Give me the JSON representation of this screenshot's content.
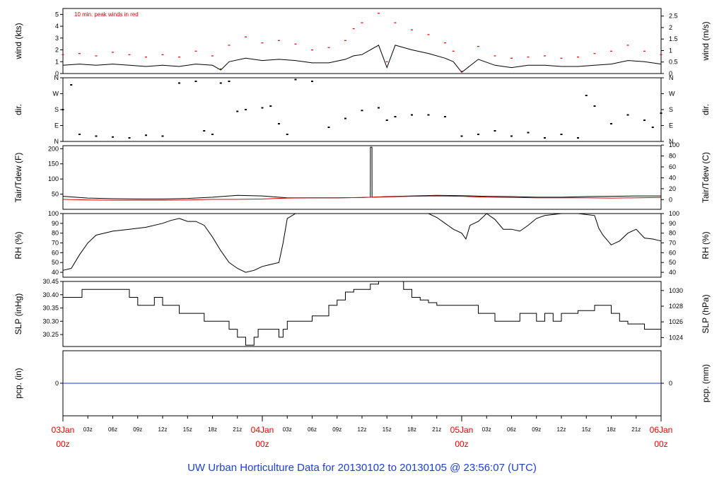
{
  "title": "UW Urban Horticulture Data for 20130102  to  20130105 @ 23:56:07  (UTC)",
  "chart_data": {
    "type": "line",
    "x_range_hours": [
      0,
      72
    ],
    "x_axis": {
      "major": [
        {
          "hour": 0,
          "date": "03Jan",
          "time": "00z"
        },
        {
          "hour": 24,
          "date": "04Jan",
          "time": "00z"
        },
        {
          "hour": 48,
          "date": "05Jan",
          "time": "00z"
        },
        {
          "hour": 72,
          "date": "06Jan",
          "time": "00z"
        }
      ],
      "minor": [
        {
          "hour": 3,
          "label": "03z"
        },
        {
          "hour": 6,
          "label": "06z"
        },
        {
          "hour": 9,
          "label": "09z"
        },
        {
          "hour": 12,
          "label": "12z"
        },
        {
          "hour": 15,
          "label": "15z"
        },
        {
          "hour": 18,
          "label": "18z"
        },
        {
          "hour": 21,
          "label": "21z"
        },
        {
          "hour": 27,
          "label": "03z"
        },
        {
          "hour": 30,
          "label": "06z"
        },
        {
          "hour": 33,
          "label": "09z"
        },
        {
          "hour": 36,
          "label": "12z"
        },
        {
          "hour": 39,
          "label": "15z"
        },
        {
          "hour": 42,
          "label": "18z"
        },
        {
          "hour": 45,
          "label": "21z"
        },
        {
          "hour": 51,
          "label": "03z"
        },
        {
          "hour": 54,
          "label": "06z"
        },
        {
          "hour": 57,
          "label": "09z"
        },
        {
          "hour": 60,
          "label": "12z"
        },
        {
          "hour": 63,
          "label": "15z"
        },
        {
          "hour": 66,
          "label": "18z"
        },
        {
          "hour": 69,
          "label": "21z"
        }
      ]
    },
    "panels": [
      {
        "id": "wind",
        "ylabel_left": "wind (kts)",
        "ylabel_right": "wind (m/s)",
        "ylim": [
          0,
          5.5
        ],
        "ticks_left": [
          "0",
          "1",
          "2",
          "3",
          "4",
          "5"
        ],
        "ticks_right": [
          "0",
          "0.5",
          "1",
          "1.5",
          "2",
          "2.5"
        ],
        "annotation": "10 min. peak winds in red",
        "series": [
          {
            "color": "#000000",
            "hours": [
              0,
              2,
              4,
              6,
              8,
              10,
              12,
              14,
              16,
              18,
              19,
              20,
              22,
              24,
              26,
              28,
              30,
              32,
              34,
              35,
              36,
              38,
              39,
              40,
              42,
              44,
              46,
              47,
              48,
              50,
              52,
              54,
              56,
              58,
              60,
              62,
              64,
              66,
              68,
              70,
              72
            ],
            "values": [
              0.7,
              0.8,
              0.7,
              0.8,
              0.7,
              0.6,
              0.7,
              0.6,
              0.8,
              0.7,
              0.3,
              1.0,
              1.3,
              1.1,
              1.2,
              1.1,
              0.9,
              0.9,
              1.2,
              1.5,
              1.6,
              2.4,
              0.5,
              2.4,
              2.0,
              1.7,
              1.3,
              1.0,
              0.1,
              1.2,
              0.7,
              0.5,
              0.7,
              0.7,
              0.6,
              0.6,
              0.7,
              0.8,
              1.1,
              1.0,
              0.8
            ]
          },
          {
            "color": "#dd0000",
            "hours": [
              0,
              2,
              4,
              6,
              8,
              10,
              12,
              14,
              16,
              18,
              19,
              20,
              22,
              24,
              26,
              28,
              30,
              32,
              34,
              35,
              36,
              38,
              39,
              40,
              42,
              44,
              46,
              47,
              48,
              50,
              52,
              54,
              56,
              58,
              60,
              62,
              64,
              66,
              68,
              70,
              72
            ],
            "values": [
              1.6,
              1.7,
              1.5,
              1.8,
              1.6,
              1.4,
              1.6,
              1.4,
              1.9,
              1.5,
              0.4,
              2.4,
              3.1,
              2.6,
              2.8,
              2.5,
              2.0,
              2.2,
              2.8,
              3.8,
              4.3,
              5.1,
              1.0,
              4.3,
              3.7,
              3.3,
              2.6,
              1.9,
              0.2,
              2.3,
              1.5,
              1.3,
              1.4,
              1.5,
              1.3,
              1.4,
              1.7,
              1.9,
              2.4,
              1.9,
              1.6
            ]
          }
        ]
      },
      {
        "id": "dir",
        "ylabel_left": "dir.",
        "ylabel_right": "dir.",
        "ylim": [
          0,
          360
        ],
        "ticks": [
          "N",
          "E",
          "S",
          "W",
          "N"
        ],
        "series": [
          {
            "color": "#000000",
            "hours": [
              0,
              1,
              2,
              4,
              6,
              8,
              10,
              12,
              14,
              16,
              17,
              18,
              19,
              20,
              21,
              22,
              24,
              25,
              26,
              27,
              28,
              30,
              32,
              34,
              36,
              38,
              39,
              40,
              42,
              44,
              46,
              48,
              50,
              52,
              54,
              56,
              58,
              60,
              62,
              63,
              64,
              66,
              68,
              70,
              71,
              72
            ],
            "values": [
              180,
              320,
              40,
              30,
              25,
              20,
              35,
              30,
              330,
              340,
              60,
              40,
              330,
              340,
              170,
              180,
              190,
              200,
              100,
              40,
              350,
              340,
              80,
              130,
              175,
              190,
              120,
              140,
              150,
              150,
              140,
              30,
              40,
              60,
              30,
              50,
              20,
              40,
              20,
              260,
              200,
              100,
              150,
              120,
              80,
              160
            ]
          }
        ]
      },
      {
        "id": "temp",
        "ylabel_left": "Tair/Tdew (F)",
        "ylabel_right": "Tair/Tdew (C)",
        "ylim": [
          0,
          210
        ],
        "ticks_left": [
          "50",
          "100",
          "150",
          "200"
        ],
        "ticks_right": [
          "0",
          "20",
          "40",
          "60",
          "80",
          "100"
        ],
        "series": [
          {
            "name": "Tair",
            "color": "#000000",
            "hours": [
              0,
              3,
              6,
              9,
              12,
              15,
              18,
              21,
              24,
              27,
              30,
              33,
              36,
              37,
              37.01,
              37.2,
              37.21,
              39,
              42,
              45,
              48,
              51,
              54,
              57,
              60,
              63,
              66,
              69,
              72
            ],
            "values": [
              43,
              37,
              35,
              34,
              34,
              36,
              40,
              46,
              44,
              38,
              38,
              38,
              39,
              40,
              205,
              205,
              40,
              42,
              44,
              46,
              45,
              43,
              42,
              40,
              40,
              42,
              43,
              44,
              44
            ]
          },
          {
            "name": "Tdew",
            "color": "#dd0000",
            "hours": [
              0,
              3,
              6,
              9,
              12,
              15,
              18,
              21,
              24,
              27,
              30,
              33,
              36,
              39,
              42,
              45,
              48,
              51,
              54,
              57,
              60,
              63,
              66,
              69,
              72
            ],
            "values": [
              33,
              31,
              30,
              30,
              30,
              31,
              33,
              33,
              34,
              37,
              38,
              38,
              39,
              41,
              43,
              44,
              43,
              40,
              39,
              38,
              38,
              38,
              37,
              38,
              39
            ]
          }
        ]
      },
      {
        "id": "rh",
        "ylabel_left": "RH (%)",
        "ylabel_right": "RH (%)",
        "ylim": [
          35,
          100
        ],
        "ticks_left": [
          "40",
          "50",
          "60",
          "70",
          "80",
          "90",
          "100"
        ],
        "ticks_right": [
          "40",
          "50",
          "60",
          "70",
          "80",
          "90",
          "100"
        ],
        "series": [
          {
            "color": "#000000",
            "hours": [
              0,
              1,
              2,
              3,
              4,
              6,
              8,
              10,
              12,
              13,
              14,
              15,
              16,
              17,
              18,
              19,
              20,
              21,
              22,
              23,
              24,
              25,
              26,
              26.5,
              27,
              28,
              29,
              30,
              31,
              32,
              34,
              36,
              38,
              40,
              42,
              44,
              45,
              46,
              47,
              48,
              48.5,
              49,
              50,
              51,
              52,
              53,
              54,
              55,
              56,
              57,
              58,
              60,
              62,
              64,
              64.5,
              65,
              66,
              67,
              68,
              69,
              70,
              71,
              72
            ],
            "values": [
              42,
              44,
              58,
              70,
              78,
              82,
              84,
              86,
              90,
              93,
              95,
              92,
              92,
              88,
              76,
              62,
              50,
              44,
              40,
              42,
              46,
              48,
              50,
              70,
              95,
              100,
              100,
              100,
              100,
              100,
              100,
              100,
              100,
              100,
              100,
              100,
              96,
              90,
              84,
              80,
              74,
              88,
              92,
              100,
              94,
              84,
              84,
              82,
              88,
              95,
              98,
              100,
              100,
              98,
              85,
              78,
              68,
              72,
              80,
              84,
              75,
              74,
              72
            ]
          }
        ]
      },
      {
        "id": "slp",
        "ylabel_left": "SLP (inHg)",
        "ylabel_right": "SLP (hPa)",
        "ylim": [
          30.205,
          30.45
        ],
        "ticks_left": [
          "30.25",
          "30.30",
          "30.35",
          "30.40",
          "30.45"
        ],
        "ticks_right": [
          "1024",
          "1026",
          "1028",
          "1030"
        ],
        "series": [
          {
            "color": "#000000",
            "step": true,
            "hours": [
              0,
              2,
              2.3,
              8,
              9,
              11,
              12,
              14,
              17,
              20,
              21,
              22,
              23,
              23.5,
              24,
              26,
              26.5,
              27,
              30,
              32,
              33,
              34,
              35,
              37,
              38,
              40,
              41,
              42,
              43,
              44,
              45,
              48,
              50,
              52,
              55,
              57,
              58,
              59,
              60,
              62,
              64,
              66,
              67,
              68,
              69,
              70,
              70.5,
              72
            ],
            "values": [
              30.39,
              30.39,
              30.42,
              30.39,
              30.36,
              30.39,
              30.36,
              30.33,
              30.3,
              30.27,
              30.24,
              30.21,
              30.24,
              30.27,
              30.27,
              30.24,
              30.27,
              30.3,
              30.32,
              30.36,
              30.38,
              30.41,
              30.42,
              30.44,
              30.45,
              30.45,
              30.42,
              30.39,
              30.38,
              30.37,
              30.36,
              30.36,
              30.33,
              30.3,
              30.33,
              30.3,
              30.33,
              30.3,
              30.33,
              30.34,
              30.36,
              30.33,
              30.3,
              30.29,
              30.29,
              30.27,
              30.27,
              30.27
            ]
          }
        ]
      },
      {
        "id": "pcp",
        "ylabel_left": "pcp. (in)",
        "ylabel_right": "pcp. (mm)",
        "ylim": [
          -1,
          1
        ],
        "ticks_left": [
          "0"
        ],
        "ticks_right": [
          "0"
        ],
        "series": [
          {
            "color": "#2233cc",
            "hours": [
              0,
              72
            ],
            "values": [
              0,
              0
            ]
          }
        ]
      }
    ]
  }
}
